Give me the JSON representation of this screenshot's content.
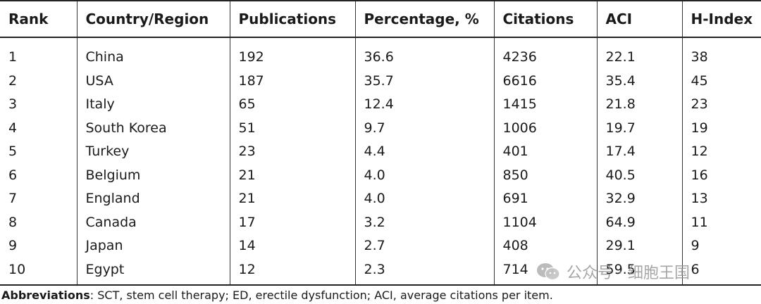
{
  "table": {
    "headers": [
      "Rank",
      "Country/Region",
      "Publications",
      "Percentage, %",
      "Citations",
      "ACI",
      "H-Index"
    ],
    "rows": [
      [
        "1",
        "China",
        "192",
        "36.6",
        "4236",
        "22.1",
        "38"
      ],
      [
        "2",
        "USA",
        "187",
        "35.7",
        "6616",
        "35.4",
        "45"
      ],
      [
        "3",
        "Italy",
        "65",
        "12.4",
        "1415",
        "21.8",
        "23"
      ],
      [
        "4",
        "South Korea",
        "51",
        "9.7",
        "1006",
        "19.7",
        "19"
      ],
      [
        "5",
        "Turkey",
        "23",
        "4.4",
        "401",
        "17.4",
        "12"
      ],
      [
        "6",
        "Belgium",
        "21",
        "4.0",
        "850",
        "40.5",
        "16"
      ],
      [
        "7",
        "England",
        "21",
        "4.0",
        "691",
        "32.9",
        "13"
      ],
      [
        "8",
        "Canada",
        "17",
        "3.2",
        "1104",
        "64.9",
        "11"
      ],
      [
        "9",
        "Japan",
        "14",
        "2.7",
        "408",
        "29.1",
        "9"
      ],
      [
        "10",
        "Egypt",
        "12",
        "2.3",
        "714",
        "59.5",
        "6"
      ]
    ]
  },
  "footnote": {
    "label": "Abbreviations",
    "text": ": SCT, stem cell therapy; ED, erectile dysfunction; ACI, average citations per item."
  },
  "watermark": {
    "text": "公众号 · 细胞王国",
    "icon": "wechat-icon"
  }
}
